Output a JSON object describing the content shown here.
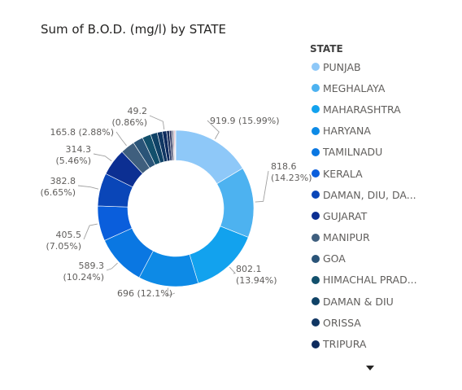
{
  "chart_data": {
    "type": "donut",
    "title": "Sum of B.O.D. (mg/l) by STATE",
    "legend": {
      "title": "STATE",
      "placement": "right"
    },
    "series": [
      {
        "name": "PUNJAB",
        "value": 919.9,
        "percent": "15.99%",
        "label": "919.9 (15.99%)",
        "color": "#8ec8f8"
      },
      {
        "name": "MEGHALAYA",
        "value": 818.6,
        "percent": "14.23%",
        "label": "818.6 (14.23%)",
        "color": "#4db2f0"
      },
      {
        "name": "MAHARASHTRA",
        "value": 802.1,
        "percent": "13.94%",
        "label": "802.1 (13.94%)",
        "color": "#12a2ee"
      },
      {
        "name": "HARYANA",
        "value": 696,
        "percent": "12.1%",
        "label": "696 (12.1%)",
        "color": "#0d8ae6"
      },
      {
        "name": "TAMILNADU",
        "value": 589.3,
        "percent": "10.24%",
        "label": "589.3 (10.24%)",
        "color": "#0a77e2"
      },
      {
        "name": "KERALA",
        "value": 405.5,
        "percent": "7.05%",
        "label": "405.5 (7.05%)",
        "color": "#0a5edc"
      },
      {
        "name": "DAMAN, DIU, DA...",
        "value": 382.8,
        "percent": "6.65%",
        "label": "382.8 (6.65%)",
        "color": "#0a46b8"
      },
      {
        "name": "GUJARAT",
        "value": 314.3,
        "percent": "5.46%",
        "label": "314.3 (5.46%)",
        "color": "#0c2f92"
      },
      {
        "name": "MANIPUR",
        "value": 165.8,
        "percent": "2.88%",
        "label": "165.8 (2.88%)",
        "color": "#3f5f7e"
      },
      {
        "name": "GOA",
        "value": 118,
        "percent": "",
        "label": "",
        "color": "#2a5478"
      },
      {
        "name": "HIMACHAL PRAD...",
        "value": 100,
        "percent": "",
        "label": "",
        "color": "#12506c"
      },
      {
        "name": "DAMAN & DIU",
        "value": 78,
        "percent": "",
        "label": "",
        "color": "#0f4266"
      },
      {
        "name": "ORISSA",
        "value": 60,
        "percent": "",
        "label": "",
        "color": "#103663"
      },
      {
        "name": "TRIPURA",
        "value": 49.2,
        "percent": "0.86%",
        "label": "49.2 (0.86%)",
        "color": "#0e2b5e"
      }
    ],
    "extra_slices": [
      {
        "value": 32,
        "color": "#1b2d5a"
      },
      {
        "value": 24,
        "color": "#222c57"
      },
      {
        "value": 18,
        "color": "#5a5e78"
      },
      {
        "value": 13,
        "color": "#a8a6b8"
      },
      {
        "value": 10,
        "color": "#cf6f7f"
      },
      {
        "value": 8,
        "color": "#8b8b98"
      }
    ]
  }
}
